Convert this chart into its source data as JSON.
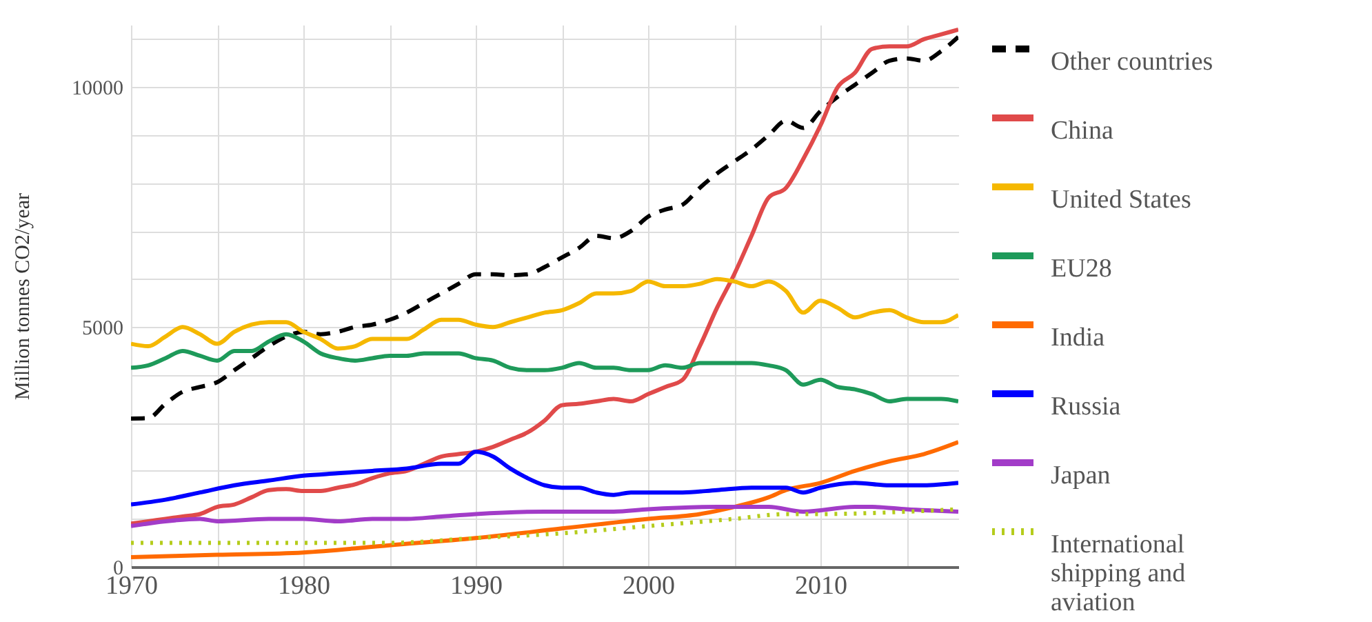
{
  "chart_data": {
    "type": "line",
    "ylabel": "Million tonnes CO2/year",
    "xlim": [
      1970,
      2018
    ],
    "ylim": [
      0,
      11300
    ],
    "xticks": [
      1970,
      {
        "value": 1975,
        "label": null
      },
      1980,
      {
        "value": 1985,
        "label": null
      },
      1990,
      {
        "value": 1995,
        "label": null
      },
      2000,
      {
        "value": 2005,
        "label": null
      },
      2010,
      {
        "value": 2015,
        "label": null
      }
    ],
    "yticks": [
      0,
      {
        "value": 1000,
        "label": null
      },
      {
        "value": 2000,
        "label": null
      },
      {
        "value": 3000,
        "label": null
      },
      {
        "value": 4000,
        "label": null
      },
      5000,
      {
        "value": 6000,
        "label": null
      },
      {
        "value": 7000,
        "label": null
      },
      {
        "value": 8000,
        "label": null
      },
      {
        "value": 9000,
        "label": null
      },
      10000,
      {
        "value": 11000,
        "label": null
      }
    ],
    "grid": true,
    "legend": "right",
    "series": [
      {
        "name": "Other countries",
        "color": "#000000",
        "line_style": "dashed",
        "x": [
          1970,
          1971,
          1972,
          1973,
          1974,
          1975,
          1976,
          1977,
          1978,
          1979,
          1980,
          1981,
          1982,
          1983,
          1984,
          1985,
          1986,
          1987,
          1988,
          1989,
          1990,
          1991,
          1992,
          1993,
          1994,
          1995,
          1996,
          1997,
          1998,
          1999,
          2000,
          2001,
          2002,
          2003,
          2004,
          2005,
          2006,
          2007,
          2008,
          2009,
          2010,
          2011,
          2012,
          2013,
          2014,
          2015,
          2016,
          2017,
          2018
        ],
        "values": [
          3090,
          3100,
          3400,
          3650,
          3750,
          3850,
          4100,
          4350,
          4600,
          4800,
          4900,
          4850,
          4900,
          5000,
          5050,
          5150,
          5300,
          5500,
          5700,
          5900,
          6100,
          6100,
          6080,
          6100,
          6250,
          6450,
          6650,
          6900,
          6850,
          7000,
          7300,
          7450,
          7550,
          7900,
          8200,
          8450,
          8700,
          9000,
          9300,
          9150,
          9500,
          9800,
          10050,
          10300,
          10550,
          10600,
          10550,
          10750,
          11050
        ]
      },
      {
        "name": "China",
        "color": "#e04a4a",
        "line_style": "solid",
        "x": [
          1970,
          1971,
          1972,
          1973,
          1974,
          1975,
          1976,
          1977,
          1978,
          1979,
          1980,
          1981,
          1982,
          1983,
          1984,
          1985,
          1986,
          1987,
          1988,
          1989,
          1990,
          1991,
          1992,
          1993,
          1994,
          1995,
          1996,
          1997,
          1998,
          1999,
          2000,
          2001,
          2002,
          2003,
          2004,
          2005,
          2006,
          2007,
          2008,
          2009,
          2010,
          2011,
          2012,
          2013,
          2014,
          2015,
          2016,
          2017,
          2018
        ],
        "values": [
          900,
          950,
          1000,
          1050,
          1100,
          1250,
          1300,
          1450,
          1600,
          1620,
          1580,
          1580,
          1650,
          1720,
          1850,
          1950,
          2000,
          2150,
          2300,
          2350,
          2400,
          2500,
          2650,
          2800,
          3050,
          3370,
          3400,
          3450,
          3500,
          3450,
          3600,
          3750,
          3900,
          4600,
          5400,
          6100,
          6900,
          7700,
          7900,
          8500,
          9200,
          10000,
          10300,
          10800,
          10850,
          10850,
          11000,
          11100,
          11200
        ]
      },
      {
        "name": "United States",
        "color": "#f5b800",
        "line_style": "solid",
        "x": [
          1970,
          1971,
          1972,
          1973,
          1974,
          1975,
          1976,
          1977,
          1978,
          1979,
          1980,
          1981,
          1982,
          1983,
          1984,
          1985,
          1986,
          1987,
          1988,
          1989,
          1990,
          1991,
          1992,
          1993,
          1994,
          1995,
          1996,
          1997,
          1998,
          1999,
          2000,
          2001,
          2002,
          2003,
          2004,
          2005,
          2006,
          2007,
          2008,
          2009,
          2010,
          2011,
          2012,
          2013,
          2014,
          2015,
          2016,
          2017,
          2018
        ],
        "values": [
          4650,
          4600,
          4800,
          5000,
          4850,
          4650,
          4900,
          5050,
          5100,
          5100,
          4900,
          4750,
          4550,
          4600,
          4750,
          4750,
          4750,
          4950,
          5150,
          5150,
          5050,
          5000,
          5100,
          5200,
          5300,
          5350,
          5500,
          5700,
          5700,
          5750,
          5950,
          5850,
          5850,
          5900,
          6000,
          5950,
          5850,
          5950,
          5750,
          5300,
          5550,
          5400,
          5200,
          5300,
          5350,
          5200,
          5100,
          5100,
          5250
        ]
      },
      {
        "name": "EU28",
        "color": "#1e9a5a",
        "line_style": "solid",
        "x": [
          1970,
          1971,
          1972,
          1973,
          1974,
          1975,
          1976,
          1977,
          1978,
          1979,
          1980,
          1981,
          1982,
          1983,
          1984,
          1985,
          1986,
          1987,
          1988,
          1989,
          1990,
          1991,
          1992,
          1993,
          1994,
          1995,
          1996,
          1997,
          1998,
          1999,
          2000,
          2001,
          2002,
          2003,
          2004,
          2005,
          2006,
          2007,
          2008,
          2009,
          2010,
          2011,
          2012,
          2013,
          2014,
          2015,
          2016,
          2017,
          2018
        ],
        "values": [
          4150,
          4200,
          4350,
          4500,
          4400,
          4300,
          4500,
          4500,
          4700,
          4850,
          4700,
          4450,
          4350,
          4300,
          4350,
          4400,
          4400,
          4450,
          4450,
          4450,
          4350,
          4300,
          4150,
          4100,
          4100,
          4150,
          4250,
          4150,
          4150,
          4100,
          4100,
          4200,
          4150,
          4250,
          4250,
          4250,
          4250,
          4200,
          4100,
          3800,
          3900,
          3750,
          3700,
          3600,
          3450,
          3500,
          3500,
          3500,
          3450
        ]
      },
      {
        "name": "India",
        "color": "#ff6a00",
        "line_style": "solid",
        "x": [
          1970,
          1975,
          1980,
          1985,
          1990,
          1995,
          2000,
          2003,
          2005,
          2007,
          2008,
          2010,
          2012,
          2014,
          2016,
          2018
        ],
        "values": [
          200,
          250,
          300,
          450,
          600,
          800,
          1000,
          1100,
          1250,
          1450,
          1600,
          1750,
          2000,
          2200,
          2350,
          2600
        ]
      },
      {
        "name": "Russia",
        "color": "#0000ff",
        "line_style": "solid",
        "x": [
          1970,
          1972,
          1974,
          1976,
          1978,
          1980,
          1982,
          1984,
          1986,
          1988,
          1989,
          1990,
          1991,
          1992,
          1993,
          1994,
          1995,
          1996,
          1997,
          1998,
          1999,
          2000,
          2002,
          2004,
          2006,
          2008,
          2009,
          2010,
          2012,
          2014,
          2016,
          2018
        ],
        "values": [
          1300,
          1400,
          1550,
          1700,
          1800,
          1900,
          1950,
          2000,
          2050,
          2150,
          2150,
          2400,
          2300,
          2050,
          1850,
          1700,
          1650,
          1650,
          1550,
          1500,
          1550,
          1550,
          1550,
          1600,
          1650,
          1650,
          1550,
          1650,
          1750,
          1700,
          1700,
          1750
        ]
      },
      {
        "name": "Japan",
        "color": "#a23cc8",
        "line_style": "solid",
        "x": [
          1970,
          1972,
          1974,
          1975,
          1978,
          1980,
          1982,
          1984,
          1986,
          1988,
          1990,
          1994,
          1998,
          2000,
          2004,
          2007,
          2009,
          2012,
          2013,
          2015,
          2018
        ],
        "values": [
          850,
          950,
          1000,
          950,
          1000,
          1000,
          950,
          1000,
          1000,
          1050,
          1100,
          1150,
          1150,
          1200,
          1250,
          1250,
          1150,
          1250,
          1250,
          1200,
          1150
        ]
      },
      {
        "name": "International shipping and aviation",
        "color": "#b5cc1c",
        "line_style": "dotted",
        "x": [
          1970,
          1975,
          1980,
          1985,
          1990,
          1995,
          2000,
          2005,
          2008,
          2010,
          2015,
          2018
        ],
        "values": [
          500,
          500,
          500,
          500,
          600,
          700,
          850,
          1000,
          1100,
          1100,
          1150,
          1200
        ]
      }
    ]
  }
}
